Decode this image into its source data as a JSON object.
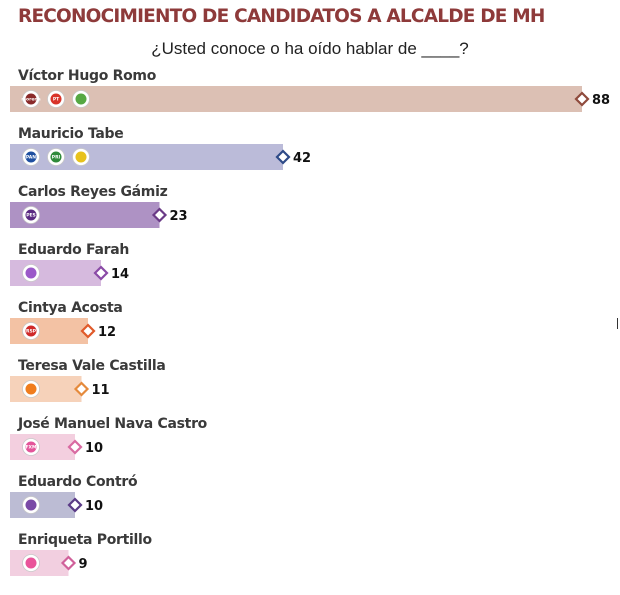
{
  "title": "RECONOCIMIENTO DE CANDIDATOS A ALCALDE DE MH",
  "subtitle": "¿Usted conoce o ha oído hablar de ____?",
  "chart_data": {
    "type": "bar",
    "orientation": "horizontal",
    "xlim": [
      0,
      100
    ],
    "grid": false,
    "legend": "none",
    "categories": [
      "Víctor Hugo Romo",
      "Mauricio Tabe",
      "Carlos Reyes Gámiz",
      "Eduardo Farah",
      "Cintya Acosta",
      "Teresa Vale Castilla",
      "José Manuel Nava Castro",
      "Eduardo Contró",
      "Enriqueta Portillo"
    ],
    "values": [
      88,
      42,
      23,
      14,
      12,
      11,
      10,
      10,
      9
    ],
    "bar_colors": [
      "#dcc0b4",
      "#bbbbd9",
      "#ae92c4",
      "#d6bade",
      "#f3c2a4",
      "#f6d2ba",
      "#f3cfdf",
      "#bcbcd4",
      "#f2cfe0"
    ],
    "marker_colors": [
      "#8f4a3c",
      "#2e4a88",
      "#6a3a86",
      "#8a4aa6",
      "#e05a2a",
      "#e58a3c",
      "#d96aa2",
      "#5a3a86",
      "#d0609a"
    ],
    "party_logos": [
      [
        {
          "icon": "morena-logo",
          "text": "morena",
          "color": "#8a2a2a"
        },
        {
          "icon": "pt-logo",
          "text": "PT",
          "color": "#d8332a"
        },
        {
          "icon": "pvem-logo",
          "text": "",
          "color": "#56a843"
        }
      ],
      [
        {
          "icon": "pan-logo",
          "text": "PAN",
          "color": "#1e4fa0"
        },
        {
          "icon": "pri-logo",
          "text": "PRI",
          "color": "#2f8a3a"
        },
        {
          "icon": "prd-logo",
          "text": "",
          "color": "#e8c21b"
        }
      ],
      [
        {
          "icon": "pes-logo",
          "text": "PES",
          "color": "#5a2a82"
        }
      ],
      [
        {
          "icon": "party-logo",
          "text": "",
          "color": "#9b59c9"
        }
      ],
      [
        {
          "icon": "rsp-logo",
          "text": "RSP",
          "color": "#cf2a2a"
        }
      ],
      [
        {
          "icon": "movimiento-ciudadano-logo",
          "text": "",
          "color": "#f07d1e"
        }
      ],
      [
        {
          "icon": "fxm-logo",
          "text": "FXM",
          "color": "#e3559a"
        }
      ],
      [
        {
          "icon": "party-logo",
          "text": "",
          "color": "#7a4aa6"
        }
      ],
      [
        {
          "icon": "elige-logo",
          "text": "",
          "color": "#e9549a"
        }
      ]
    ]
  }
}
